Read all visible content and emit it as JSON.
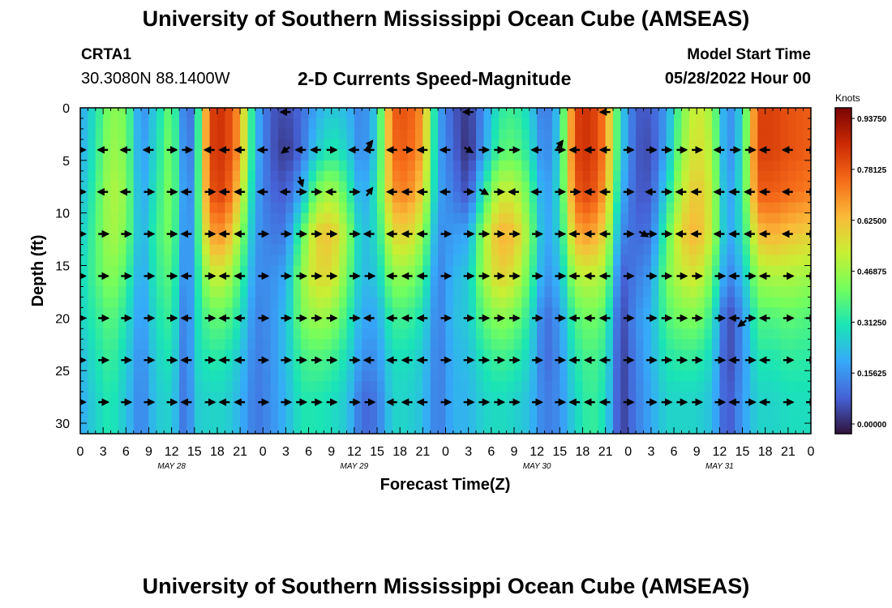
{
  "header": {
    "title": "University of Southern Mississippi Ocean Cube (AMSEAS)",
    "station": "CRTA1",
    "coords": "30.3080N  88.1400W",
    "subtitle": "2-D Currents Speed-Magnitude",
    "model_start_label": "Model Start Time",
    "model_start_value": "05/28/2022 Hour 00"
  },
  "footer": {
    "title": "University of Southern Mississippi Ocean Cube (AMSEAS)"
  },
  "chart_data": {
    "type": "heatmap",
    "title": "2-D Currents Speed-Magnitude",
    "xlabel": "Forecast Time(Z)",
    "ylabel": "Depth (ft)",
    "x_range_hours": [
      0,
      96
    ],
    "ylim": [
      0,
      31
    ],
    "x_ticks": [
      {
        "hour": 0,
        "label": "0"
      },
      {
        "hour": 3,
        "label": "3"
      },
      {
        "hour": 6,
        "label": "6"
      },
      {
        "hour": 9,
        "label": "9"
      },
      {
        "hour": 12,
        "label": "12"
      },
      {
        "hour": 15,
        "label": "15"
      },
      {
        "hour": 18,
        "label": "18"
      },
      {
        "hour": 21,
        "label": "21"
      },
      {
        "hour": 24,
        "label": "0"
      },
      {
        "hour": 27,
        "label": "3"
      },
      {
        "hour": 30,
        "label": "6"
      },
      {
        "hour": 33,
        "label": "9"
      },
      {
        "hour": 36,
        "label": "12"
      },
      {
        "hour": 39,
        "label": "15"
      },
      {
        "hour": 42,
        "label": "18"
      },
      {
        "hour": 45,
        "label": "21"
      },
      {
        "hour": 48,
        "label": "0"
      },
      {
        "hour": 51,
        "label": "3"
      },
      {
        "hour": 54,
        "label": "6"
      },
      {
        "hour": 57,
        "label": "9"
      },
      {
        "hour": 60,
        "label": "12"
      },
      {
        "hour": 63,
        "label": "15"
      },
      {
        "hour": 66,
        "label": "18"
      },
      {
        "hour": 69,
        "label": "21"
      },
      {
        "hour": 72,
        "label": "0"
      },
      {
        "hour": 75,
        "label": "3"
      },
      {
        "hour": 78,
        "label": "6"
      },
      {
        "hour": 81,
        "label": "9"
      },
      {
        "hour": 84,
        "label": "12"
      },
      {
        "hour": 87,
        "label": "15"
      },
      {
        "hour": 90,
        "label": "18"
      },
      {
        "hour": 93,
        "label": "21"
      },
      {
        "hour": 96,
        "label": "0"
      }
    ],
    "date_labels": [
      {
        "hour": 12,
        "label": "MAY 28"
      },
      {
        "hour": 36,
        "label": "MAY 29"
      },
      {
        "hour": 60,
        "label": "MAY 30"
      },
      {
        "hour": 84,
        "label": "MAY 31"
      }
    ],
    "y_ticks": [
      0,
      5,
      10,
      15,
      20,
      25,
      30
    ],
    "colorbar": {
      "unit": "Knots",
      "range": [
        0,
        1.0
      ],
      "ticks": [
        {
          "value": 0.0,
          "label": "0.00000"
        },
        {
          "value": 0.15625,
          "label": "0.15625"
        },
        {
          "value": 0.3125,
          "label": "0.31250"
        },
        {
          "value": 0.46875,
          "label": "0.46875"
        },
        {
          "value": 0.625,
          "label": "0.62500"
        },
        {
          "value": 0.78125,
          "label": "0.78125"
        },
        {
          "value": 0.9375,
          "label": "0.93750"
        }
      ],
      "colors": [
        "#30123b",
        "#4662d7",
        "#36aaf9",
        "#1ae4b6",
        "#72fe5e",
        "#c8ef34",
        "#faba39",
        "#f66b19",
        "#cb2a04",
        "#7a0403"
      ]
    },
    "depths_ft": [
      0,
      4,
      8,
      12,
      16,
      20,
      24,
      28
    ],
    "speed_columns_knots": [
      {
        "hour": 0,
        "speeds": [
          0.22,
          0.22,
          0.25,
          0.28,
          0.3,
          0.3,
          0.25,
          0.22
        ]
      },
      {
        "hour": 2,
        "speeds": [
          0.33,
          0.35,
          0.38,
          0.4,
          0.4,
          0.36,
          0.33,
          0.3
        ]
      },
      {
        "hour": 4,
        "speeds": [
          0.48,
          0.5,
          0.53,
          0.52,
          0.48,
          0.42,
          0.38,
          0.35
        ]
      },
      {
        "hour": 6,
        "speeds": [
          0.45,
          0.46,
          0.48,
          0.46,
          0.4,
          0.34,
          0.3,
          0.27
        ]
      },
      {
        "hour": 8,
        "speeds": [
          0.16,
          0.18,
          0.2,
          0.22,
          0.2,
          0.18,
          0.16,
          0.15
        ]
      },
      {
        "hour": 10,
        "speeds": [
          0.3,
          0.32,
          0.35,
          0.38,
          0.36,
          0.33,
          0.3,
          0.28
        ]
      },
      {
        "hour": 12,
        "speeds": [
          0.45,
          0.47,
          0.48,
          0.46,
          0.42,
          0.38,
          0.34,
          0.3
        ]
      },
      {
        "hour": 14,
        "speeds": [
          0.08,
          0.1,
          0.12,
          0.12,
          0.12,
          0.1,
          0.1,
          0.1
        ]
      },
      {
        "hour": 15,
        "speeds": [
          0.2,
          0.22,
          0.25,
          0.28,
          0.28,
          0.3,
          0.3,
          0.28
        ]
      },
      {
        "hour": 17,
        "speeds": [
          0.85,
          0.85,
          0.82,
          0.7,
          0.55,
          0.42,
          0.35,
          0.3
        ]
      },
      {
        "hour": 19,
        "speeds": [
          0.88,
          0.88,
          0.85,
          0.72,
          0.55,
          0.42,
          0.34,
          0.3
        ]
      },
      {
        "hour": 21,
        "speeds": [
          0.7,
          0.7,
          0.62,
          0.5,
          0.4,
          0.33,
          0.27,
          0.24
        ]
      },
      {
        "hour": 23,
        "speeds": [
          0.25,
          0.25,
          0.22,
          0.2,
          0.18,
          0.16,
          0.15,
          0.14
        ]
      },
      {
        "hour": 25,
        "speeds": [
          0.1,
          0.1,
          0.12,
          0.15,
          0.18,
          0.18,
          0.18,
          0.18
        ]
      },
      {
        "hour": 27,
        "speeds": [
          0.08,
          0.05,
          0.1,
          0.15,
          0.22,
          0.26,
          0.26,
          0.24
        ]
      },
      {
        "hour": 29,
        "speeds": [
          0.12,
          0.12,
          0.22,
          0.4,
          0.48,
          0.45,
          0.38,
          0.34
        ]
      },
      {
        "hour": 31,
        "speeds": [
          0.22,
          0.28,
          0.45,
          0.62,
          0.6,
          0.5,
          0.4,
          0.34
        ]
      },
      {
        "hour": 33,
        "speeds": [
          0.28,
          0.35,
          0.52,
          0.65,
          0.6,
          0.48,
          0.38,
          0.32
        ]
      },
      {
        "hour": 35,
        "speeds": [
          0.25,
          0.3,
          0.4,
          0.5,
          0.45,
          0.38,
          0.32,
          0.28
        ]
      },
      {
        "hour": 37,
        "speeds": [
          0.15,
          0.15,
          0.2,
          0.25,
          0.25,
          0.22,
          0.18,
          0.12
        ]
      },
      {
        "hour": 39,
        "speeds": [
          0.3,
          0.3,
          0.35,
          0.32,
          0.28,
          0.22,
          0.18,
          0.14
        ]
      },
      {
        "hour": 41,
        "speeds": [
          0.8,
          0.78,
          0.72,
          0.6,
          0.48,
          0.38,
          0.32,
          0.3
        ]
      },
      {
        "hour": 43,
        "speeds": [
          0.82,
          0.8,
          0.75,
          0.62,
          0.48,
          0.38,
          0.32,
          0.3
        ]
      },
      {
        "hour": 45,
        "speeds": [
          0.72,
          0.7,
          0.62,
          0.5,
          0.4,
          0.32,
          0.28,
          0.26
        ]
      },
      {
        "hour": 47,
        "speeds": [
          0.22,
          0.22,
          0.22,
          0.18,
          0.15,
          0.14,
          0.14,
          0.14
        ]
      },
      {
        "hour": 49,
        "speeds": [
          0.1,
          0.12,
          0.15,
          0.2,
          0.24,
          0.26,
          0.24,
          0.24
        ]
      },
      {
        "hour": 51,
        "speeds": [
          0.05,
          0.03,
          0.08,
          0.22,
          0.28,
          0.28,
          0.26,
          0.24
        ]
      },
      {
        "hour": 53,
        "speeds": [
          0.18,
          0.2,
          0.35,
          0.5,
          0.5,
          0.42,
          0.34,
          0.3
        ]
      },
      {
        "hour": 55,
        "speeds": [
          0.35,
          0.4,
          0.55,
          0.68,
          0.62,
          0.48,
          0.38,
          0.32
        ]
      },
      {
        "hour": 57,
        "speeds": [
          0.38,
          0.42,
          0.55,
          0.66,
          0.58,
          0.45,
          0.36,
          0.3
        ]
      },
      {
        "hour": 59,
        "speeds": [
          0.3,
          0.34,
          0.42,
          0.48,
          0.42,
          0.35,
          0.3,
          0.26
        ]
      },
      {
        "hour": 61,
        "speeds": [
          0.12,
          0.14,
          0.18,
          0.2,
          0.18,
          0.12,
          0.12,
          0.15
        ]
      },
      {
        "hour": 63,
        "speeds": [
          0.28,
          0.3,
          0.32,
          0.3,
          0.25,
          0.2,
          0.18,
          0.18
        ]
      },
      {
        "hour": 65,
        "speeds": [
          0.85,
          0.85,
          0.8,
          0.68,
          0.52,
          0.4,
          0.34,
          0.3
        ]
      },
      {
        "hour": 67,
        "speeds": [
          0.88,
          0.88,
          0.85,
          0.72,
          0.55,
          0.45,
          0.4,
          0.38
        ]
      },
      {
        "hour": 69,
        "speeds": [
          0.75,
          0.75,
          0.7,
          0.6,
          0.5,
          0.4,
          0.35,
          0.32
        ]
      },
      {
        "hour": 71,
        "speeds": [
          0.3,
          0.3,
          0.25,
          0.18,
          0.1,
          0.06,
          0.05,
          0.05
        ]
      },
      {
        "hour": 73,
        "speeds": [
          0.1,
          0.1,
          0.1,
          0.12,
          0.15,
          0.18,
          0.16,
          0.15
        ]
      },
      {
        "hour": 75,
        "speeds": [
          0.1,
          0.08,
          0.1,
          0.14,
          0.2,
          0.24,
          0.24,
          0.22
        ]
      },
      {
        "hour": 77,
        "speeds": [
          0.2,
          0.22,
          0.3,
          0.4,
          0.45,
          0.4,
          0.34,
          0.3
        ]
      },
      {
        "hour": 79,
        "speeds": [
          0.45,
          0.48,
          0.55,
          0.62,
          0.55,
          0.45,
          0.36,
          0.3
        ]
      },
      {
        "hour": 81,
        "speeds": [
          0.58,
          0.6,
          0.65,
          0.68,
          0.58,
          0.46,
          0.36,
          0.3
        ]
      },
      {
        "hour": 83,
        "speeds": [
          0.5,
          0.52,
          0.55,
          0.55,
          0.45,
          0.36,
          0.3,
          0.26
        ]
      },
      {
        "hour": 85,
        "speeds": [
          0.15,
          0.15,
          0.18,
          0.2,
          0.15,
          0.06,
          0.06,
          0.08
        ]
      },
      {
        "hour": 87,
        "speeds": [
          0.3,
          0.32,
          0.34,
          0.32,
          0.25,
          0.18,
          0.18,
          0.2
        ]
      },
      {
        "hour": 89,
        "speeds": [
          0.85,
          0.85,
          0.8,
          0.65,
          0.5,
          0.4,
          0.34,
          0.3
        ]
      },
      {
        "hour": 91,
        "speeds": [
          0.85,
          0.85,
          0.8,
          0.68,
          0.52,
          0.4,
          0.34,
          0.3
        ]
      },
      {
        "hour": 93,
        "speeds": [
          0.82,
          0.82,
          0.78,
          0.65,
          0.52,
          0.42,
          0.36,
          0.32
        ]
      },
      {
        "hour": 96,
        "speeds": [
          0.8,
          0.8,
          0.75,
          0.62,
          0.5,
          0.4,
          0.35,
          0.32
        ]
      }
    ],
    "vectors": {
      "hours": [
        0,
        3,
        6,
        9,
        12,
        14,
        17,
        19,
        21,
        24,
        27,
        29,
        31,
        33,
        36,
        38,
        41,
        43,
        45,
        48,
        51,
        53,
        55,
        57,
        60,
        63,
        65,
        67,
        69,
        72,
        75,
        77,
        79,
        81,
        84,
        86,
        88,
        90,
        93,
        96
      ],
      "depths_ft": [
        4,
        8,
        12,
        16,
        20,
        24,
        28
      ],
      "east_rows": [
        [
          0,
          4,
          8,
          12,
          14,
          33,
          43,
          53,
          55,
          57,
          63,
          72,
          75,
          77,
          79,
          81,
          86,
          88,
          96
        ],
        [
          0,
          9,
          12,
          17,
          29,
          31,
          36,
          51,
          53,
          55,
          63,
          65,
          72,
          77,
          96
        ],
        [
          0,
          3,
          6,
          9,
          12,
          17,
          24,
          27,
          29,
          31,
          33,
          36,
          48,
          51,
          53,
          55,
          57,
          60,
          63,
          72,
          75,
          77,
          96
        ],
        [
          0,
          3,
          6,
          9,
          12,
          17,
          24,
          27,
          29,
          31,
          33,
          36,
          38,
          48,
          51,
          53,
          55,
          57,
          60,
          63,
          72,
          75,
          77,
          79,
          81,
          84,
          88,
          93,
          96
        ],
        [
          0,
          3,
          6,
          9,
          12,
          17,
          24,
          27,
          29,
          31,
          33,
          36,
          48,
          51,
          53,
          55,
          57,
          60,
          63,
          72,
          75,
          77,
          79,
          81,
          84,
          88,
          93,
          96
        ],
        [
          0,
          3,
          6,
          9,
          12,
          17,
          24,
          27,
          29,
          31,
          33,
          36,
          48,
          51,
          53,
          55,
          57,
          60,
          63,
          72,
          75,
          77,
          79,
          81,
          84,
          88,
          93,
          96
        ],
        [
          0,
          3,
          6,
          9,
          12,
          17,
          24,
          27,
          29,
          31,
          33,
          36,
          38,
          48,
          51,
          53,
          55,
          57,
          60,
          63,
          72,
          75,
          77,
          79,
          81,
          84,
          88,
          93,
          96
        ]
      ],
      "east_down_marks": [
        {
          "hour": 51,
          "depth": 4
        },
        {
          "hour": 53,
          "depth": 8
        },
        {
          "hour": 74,
          "depth": 12
        }
      ],
      "diagonal_marks": [
        {
          "hour": 27,
          "depth": 4
        },
        {
          "hour": 29,
          "depth": 7
        },
        {
          "hour": 38,
          "depth": 3.5
        },
        {
          "hour": 38,
          "depth": 8
        },
        {
          "hour": 63,
          "depth": 3.5
        },
        {
          "hour": 87,
          "depth": 20.5
        }
      ]
    }
  }
}
